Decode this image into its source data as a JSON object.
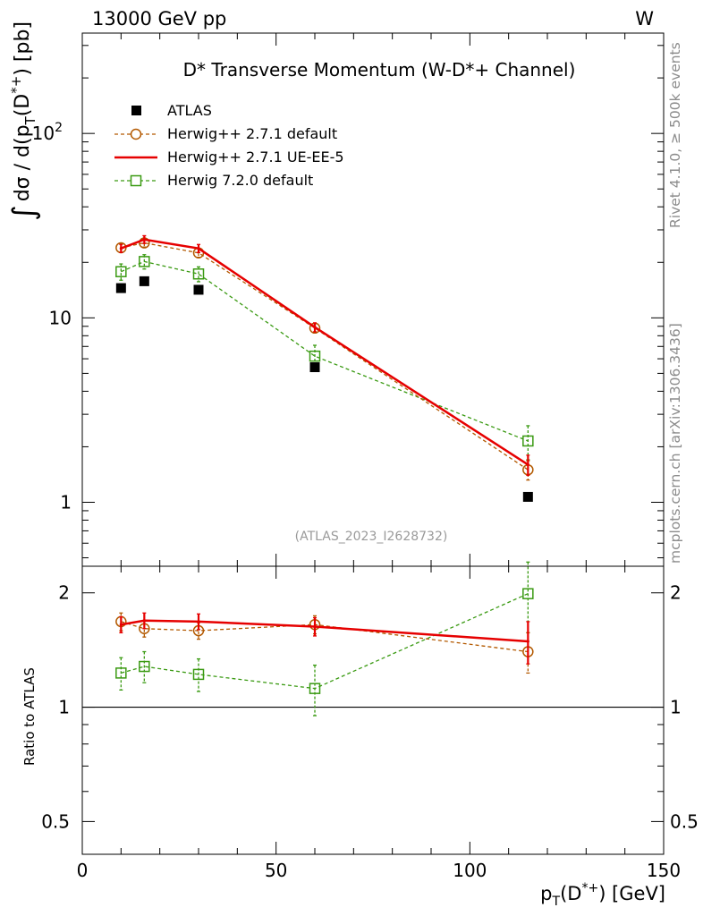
{
  "header": {
    "left": "13000 GeV pp",
    "right": "W"
  },
  "side_labels": {
    "rivet": "Rivet 4.1.0, ≥ 500k events",
    "mcplots": "mcplots.cern.ch [arXiv:1306.3436]"
  },
  "analysis_id": "(ATLAS_2023_I2628732)",
  "colors": {
    "atlas": "#000000",
    "herwig271_default": "#b35900",
    "herwig271_ueee5": "#e60000",
    "herwig720_default": "#3a9a12"
  },
  "chart_data": [
    {
      "type": "scatter",
      "scale": "log",
      "title": "D* Transverse Momentum (W-D*+ Channel)",
      "ylabel": {
        "prefix": "∫",
        "body": "dσ / d(p",
        "sub": "T",
        "mid": "(D",
        "sup": "*+",
        "end": ") [pb]"
      },
      "xlim": [
        0,
        150
      ],
      "ylim": [
        0.45,
        350
      ],
      "yticks": [
        {
          "value": 1,
          "label": "1"
        },
        {
          "value": 10,
          "label": "10"
        },
        {
          "value": 100,
          "label": "10",
          "sup": "2"
        }
      ],
      "x": [
        10,
        16,
        30,
        60,
        115
      ],
      "series": [
        {
          "name": "ATLAS",
          "marker": "square-filled",
          "line": "none",
          "color": "#000000",
          "values": [
            14.5,
            15.8,
            14.2,
            5.4,
            1.07
          ],
          "errors": [
            0,
            0,
            0,
            0,
            0
          ]
        },
        {
          "name": "Herwig++ 2.7.1 default",
          "marker": "circle-open",
          "line": "dashed",
          "color": "#b35900",
          "values": [
            24.0,
            25.5,
            22.5,
            8.8,
            1.5
          ],
          "errors": [
            1.3,
            1.3,
            1.2,
            0.5,
            0.18
          ]
        },
        {
          "name": "Herwig++ 2.7.1 UE-EE-5",
          "marker": "none",
          "line": "solid",
          "color": "#e60000",
          "values": [
            23.8,
            26.6,
            23.8,
            8.9,
            1.6
          ],
          "errors": [
            1.2,
            1.3,
            1.2,
            0.5,
            0.2
          ]
        },
        {
          "name": "Herwig 7.2.0 default",
          "marker": "square-open",
          "line": "dashed",
          "color": "#3a9a12",
          "values": [
            17.8,
            20.2,
            17.3,
            6.2,
            2.15
          ],
          "errors": [
            1.8,
            1.8,
            1.6,
            0.9,
            0.45
          ]
        }
      ]
    },
    {
      "type": "scatter",
      "scale": "log",
      "ylabel": "Ratio to ATLAS",
      "xlabel": {
        "pre": "p",
        "sub": "T",
        "mid": "(D",
        "sup": "*+",
        "end": ") [GeV]"
      },
      "xlim": [
        0,
        150
      ],
      "ylim": [
        0.41,
        2.35
      ],
      "xticks": [
        {
          "value": 0,
          "label": "0"
        },
        {
          "value": 50,
          "label": "50"
        },
        {
          "value": 100,
          "label": "100"
        },
        {
          "value": 150,
          "label": "150"
        }
      ],
      "yticks": [
        {
          "value": 0.5,
          "label": "0.5"
        },
        {
          "value": 1,
          "label": "1"
        },
        {
          "value": 2,
          "label": "2"
        }
      ],
      "reference": 1,
      "x": [
        10,
        16,
        30,
        60,
        115
      ],
      "series": [
        {
          "name": "Herwig++ 2.7.1 default",
          "values": [
            1.68,
            1.61,
            1.59,
            1.65,
            1.4
          ],
          "errors": [
            0.09,
            0.08,
            0.08,
            0.09,
            0.17
          ]
        },
        {
          "name": "Herwig++ 2.7.1 UE-EE-5",
          "values": [
            1.65,
            1.69,
            1.68,
            1.63,
            1.49
          ],
          "errors": [
            0.08,
            0.08,
            0.08,
            0.09,
            0.19
          ]
        },
        {
          "name": "Herwig 7.2.0 default",
          "values": [
            1.23,
            1.28,
            1.22,
            1.12,
            1.99
          ],
          "errors": [
            0.12,
            0.12,
            0.12,
            0.17,
            0.42
          ]
        }
      ]
    }
  ]
}
